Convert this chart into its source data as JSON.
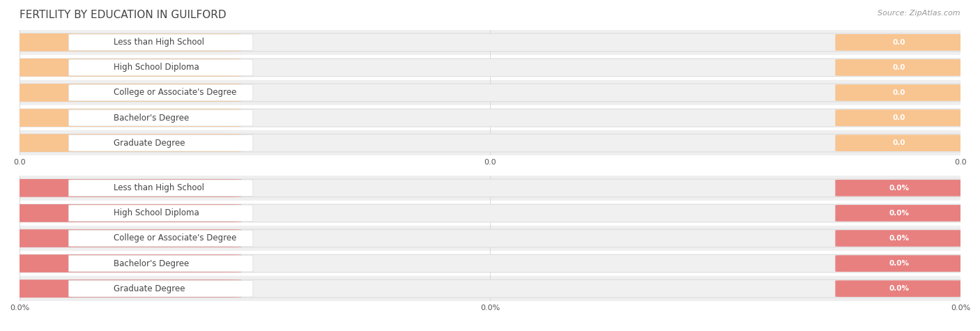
{
  "title": "FERTILITY BY EDUCATION IN GUILFORD",
  "source": "Source: ZipAtlas.com",
  "categories": [
    "Less than High School",
    "High School Diploma",
    "College or Associate's Degree",
    "Bachelor's Degree",
    "Graduate Degree"
  ],
  "values_top": [
    0.0,
    0.0,
    0.0,
    0.0,
    0.0
  ],
  "values_bottom": [
    0.0,
    0.0,
    0.0,
    0.0,
    0.0
  ],
  "bar_color_top": "#F8C490",
  "bar_bg_color_top": "#F0F0F0",
  "bar_color_bottom": "#E88080",
  "bar_bg_color_bottom": "#F0F0F0",
  "label_color": "#444444",
  "value_color_top": "#FFFFFF",
  "value_color_bottom": "#FFFFFF",
  "title_color": "#444444",
  "source_color": "#999999",
  "background_color": "#FFFFFF",
  "row_alt_color": "#EFEFEF",
  "row_main_color": "#FFFFFF",
  "tick_labels_top": [
    "0.0",
    "0.0",
    "0.0"
  ],
  "tick_labels_bottom": [
    "0.0%",
    "0.0%",
    "0.0%"
  ],
  "title_fontsize": 11,
  "label_fontsize": 8.5,
  "value_fontsize": 7.5,
  "tick_fontsize": 8,
  "source_fontsize": 8
}
